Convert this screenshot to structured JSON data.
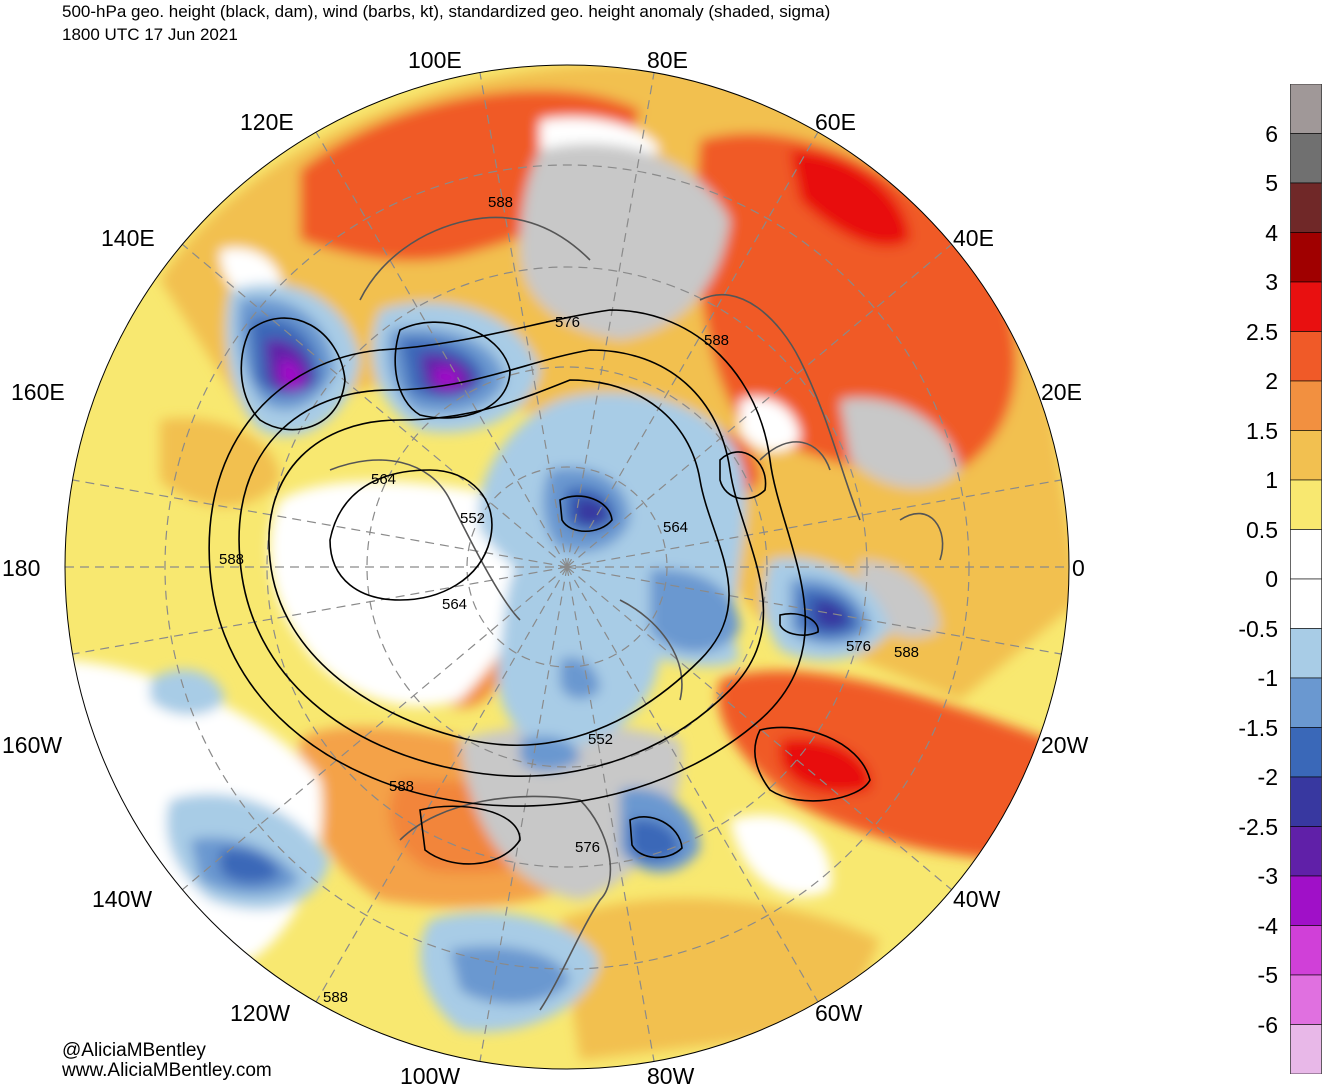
{
  "title": {
    "line1": "500-hPa geo. height (black, dam), wind (barbs, kt), standardized geo. height anomaly (shaded, sigma)",
    "line2": "1800 UTC 17 Jun 2021"
  },
  "longitude_labels": [
    {
      "text": "100E",
      "lon": 100
    },
    {
      "text": "80E",
      "lon": 80
    },
    {
      "text": "120E",
      "lon": 120
    },
    {
      "text": "60E",
      "lon": 60
    },
    {
      "text": "140E",
      "lon": 140
    },
    {
      "text": "40E",
      "lon": 40
    },
    {
      "text": "160E",
      "lon": 160
    },
    {
      "text": "20E",
      "lon": 20
    },
    {
      "text": "180",
      "lon": 180
    },
    {
      "text": "0",
      "lon": 0
    },
    {
      "text": "160W",
      "lon": -160
    },
    {
      "text": "20W",
      "lon": -20
    },
    {
      "text": "140W",
      "lon": -140
    },
    {
      "text": "40W",
      "lon": -40
    },
    {
      "text": "120W",
      "lon": -120
    },
    {
      "text": "60W",
      "lon": -60
    },
    {
      "text": "100W",
      "lon": -100
    },
    {
      "text": "80W",
      "lon": -80
    }
  ],
  "contour_labels": [
    "588",
    "576",
    "588",
    "564",
    "552",
    "588",
    "564",
    "564",
    "576",
    "588",
    "552",
    "588",
    "576",
    "588"
  ],
  "colorbar": {
    "labels": [
      "6",
      "5",
      "4",
      "3",
      "2.5",
      "2",
      "1.5",
      "1",
      "0.5",
      "0",
      "-0.5",
      "-1",
      "-1.5",
      "-2",
      "-2.5",
      "-3",
      "-4",
      "-5",
      "-6"
    ],
    "colors": [
      "#a09898",
      "#707070",
      "#702828",
      "#a00000",
      "#e81010",
      "#f05a28",
      "#f29040",
      "#f2c050",
      "#f8e870",
      "#ffffff",
      "#ffffff",
      "#a8cce6",
      "#6a98d0",
      "#3a68b8",
      "#3838a0",
      "#6020a8",
      "#a010c8",
      "#d040d8",
      "#e070e0",
      "#e8b8e8"
    ]
  },
  "credit": {
    "handle": "@AliciaMBentley",
    "url": "www.AliciaMBentley.com"
  }
}
